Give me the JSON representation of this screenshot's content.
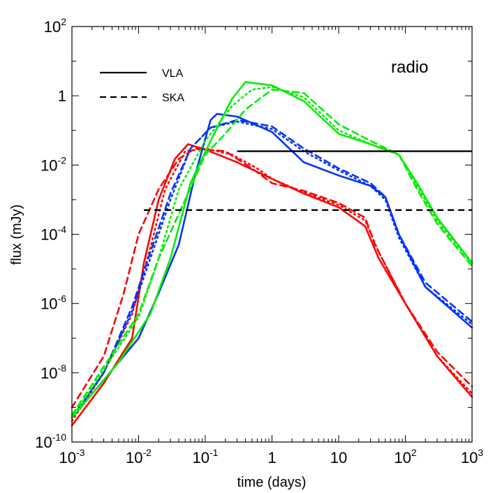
{
  "chart_data": {
    "type": "line",
    "title": "",
    "xlabel": "time (days)",
    "ylabel": "flux (mJy)",
    "xscale": "log",
    "yscale": "log",
    "xlim": [
      0.001,
      1000
    ],
    "ylim": [
      1e-10,
      100
    ],
    "grid": false,
    "legend_placement": "top-left",
    "annotation": "radio",
    "x_ticks": [
      {
        "base": "10",
        "exp": "-3"
      },
      {
        "base": "10",
        "exp": "-2"
      },
      {
        "base": "10",
        "exp": "-1"
      },
      {
        "base": "1",
        "exp": ""
      },
      {
        "base": "10",
        "exp": ""
      },
      {
        "base": "10",
        "exp": "2"
      },
      {
        "base": "10",
        "exp": "3"
      }
    ],
    "y_ticks": [
      {
        "base": "10",
        "exp": "-10"
      },
      {
        "base": "10",
        "exp": "-8"
      },
      {
        "base": "10",
        "exp": "-6"
      },
      {
        "base": "10",
        "exp": "-4"
      },
      {
        "base": "10",
        "exp": "-2"
      },
      {
        "base": "1",
        "exp": ""
      },
      {
        "base": "10",
        "exp": "2"
      }
    ],
    "legend": [
      {
        "label": "VLA",
        "style": "solid"
      },
      {
        "label": "SKA",
        "style": "dashed"
      }
    ],
    "thresholds": [
      {
        "name": "VLA",
        "style": "solid",
        "value": 0.025,
        "x_start": 0.3
      },
      {
        "name": "SKA",
        "style": "dashed",
        "value": 0.0005,
        "x_start": 0.012
      }
    ],
    "series": [
      {
        "color": "#ff0000",
        "style": "solid",
        "points": [
          [
            0.001,
            3e-10
          ],
          [
            0.003,
            5e-09
          ],
          [
            0.008,
            1e-07
          ],
          [
            0.012,
            1.5e-05
          ],
          [
            0.02,
            0.001
          ],
          [
            0.035,
            0.015
          ],
          [
            0.055,
            0.04
          ],
          [
            0.1,
            0.028
          ],
          [
            0.3,
            0.012
          ],
          [
            1,
            0.004
          ],
          [
            3,
            0.0015
          ],
          [
            10,
            0.0006
          ],
          [
            25,
            0.00017
          ],
          [
            40,
            2e-05
          ],
          [
            100,
            1e-06
          ],
          [
            300,
            3e-08
          ],
          [
            1000,
            2e-09
          ]
        ]
      },
      {
        "color": "#ff0000",
        "style": "dashed",
        "points": [
          [
            0.001,
            1e-09
          ],
          [
            0.003,
            3e-08
          ],
          [
            0.006,
            2e-06
          ],
          [
            0.01,
            0.0001
          ],
          [
            0.02,
            0.002
          ],
          [
            0.04,
            0.015
          ],
          [
            0.07,
            0.03
          ],
          [
            0.2,
            0.025
          ],
          [
            0.5,
            0.008
          ],
          [
            1,
            0.003
          ],
          [
            3,
            0.0018
          ],
          [
            10,
            0.0008
          ],
          [
            25,
            0.0003
          ],
          [
            35,
            5e-05
          ],
          [
            100,
            1e-06
          ],
          [
            300,
            4e-08
          ],
          [
            1000,
            4e-09
          ]
        ]
      },
      {
        "color": "#ff0000",
        "style": "dotted",
        "points": [
          [
            0.001,
            4e-10
          ],
          [
            0.003,
            1e-08
          ],
          [
            0.008,
            5e-07
          ],
          [
            0.015,
            4e-05
          ],
          [
            0.025,
            0.002
          ],
          [
            0.05,
            0.025
          ],
          [
            0.1,
            0.03
          ],
          [
            0.25,
            0.02
          ],
          [
            0.6,
            0.008
          ],
          [
            1,
            0.004
          ],
          [
            3,
            0.0016
          ],
          [
            10,
            0.0007
          ],
          [
            25,
            0.00025
          ],
          [
            40,
            3e-05
          ],
          [
            100,
            1e-06
          ],
          [
            300,
            3e-08
          ],
          [
            1000,
            2.5e-09
          ]
        ]
      },
      {
        "color": "#0033ff",
        "style": "solid",
        "points": [
          [
            0.001,
            5e-10
          ],
          [
            0.005,
            2e-08
          ],
          [
            0.01,
            1e-07
          ],
          [
            0.02,
            2e-06
          ],
          [
            0.04,
            5e-05
          ],
          [
            0.07,
            0.005
          ],
          [
            0.12,
            0.2
          ],
          [
            0.15,
            0.3
          ],
          [
            0.3,
            0.25
          ],
          [
            1,
            0.09
          ],
          [
            3,
            0.012
          ],
          [
            10,
            0.005
          ],
          [
            30,
            0.0025
          ],
          [
            50,
            0.0012
          ],
          [
            80,
            0.0001
          ],
          [
            200,
            3e-06
          ],
          [
            1000,
            2e-07
          ]
        ]
      },
      {
        "color": "#0033ff",
        "style": "dashed",
        "points": [
          [
            0.001,
            5e-10
          ],
          [
            0.003,
            1e-08
          ],
          [
            0.008,
            8e-07
          ],
          [
            0.015,
            3e-05
          ],
          [
            0.03,
            0.0015
          ],
          [
            0.06,
            0.03
          ],
          [
            0.12,
            0.12
          ],
          [
            0.3,
            0.2
          ],
          [
            1,
            0.13
          ],
          [
            3,
            0.03
          ],
          [
            10,
            0.008
          ],
          [
            30,
            0.003
          ],
          [
            50,
            0.0012
          ],
          [
            80,
            0.0001
          ],
          [
            200,
            4e-06
          ],
          [
            1000,
            3e-07
          ]
        ]
      },
      {
        "color": "#0033ff",
        "style": "dotted",
        "points": [
          [
            0.001,
            5e-10
          ],
          [
            0.003,
            1e-08
          ],
          [
            0.008,
            6e-07
          ],
          [
            0.015,
            2e-05
          ],
          [
            0.03,
            0.001
          ],
          [
            0.06,
            0.03
          ],
          [
            0.12,
            0.12
          ],
          [
            0.3,
            0.18
          ],
          [
            1,
            0.11
          ],
          [
            3,
            0.025
          ],
          [
            10,
            0.007
          ],
          [
            30,
            0.0025
          ],
          [
            50,
            0.001
          ],
          [
            80,
            8e-05
          ],
          [
            200,
            3e-06
          ],
          [
            1000,
            2.5e-07
          ]
        ]
      },
      {
        "color": "#00ee00",
        "style": "solid",
        "points": [
          [
            0.001,
            5e-10
          ],
          [
            0.005,
            2e-08
          ],
          [
            0.015,
            5e-07
          ],
          [
            0.03,
            2e-05
          ],
          [
            0.06,
            0.003
          ],
          [
            0.12,
            0.05
          ],
          [
            0.25,
            0.8
          ],
          [
            0.4,
            2.5
          ],
          [
            1,
            2
          ],
          [
            3,
            0.7
          ],
          [
            10,
            0.08
          ],
          [
            30,
            0.04
          ],
          [
            80,
            0.02
          ],
          [
            150,
            0.003
          ],
          [
            300,
            0.0003
          ],
          [
            1000,
            1.5e-05
          ]
        ]
      },
      {
        "color": "#00ee00",
        "style": "dashed",
        "points": [
          [
            0.001,
            6e-10
          ],
          [
            0.003,
            1.5e-08
          ],
          [
            0.01,
            5e-07
          ],
          [
            0.02,
            2e-05
          ],
          [
            0.05,
            0.001
          ],
          [
            0.1,
            0.02
          ],
          [
            0.2,
            0.08
          ],
          [
            0.4,
            0.4
          ],
          [
            1,
            1.5
          ],
          [
            3,
            1.2
          ],
          [
            10,
            0.15
          ],
          [
            30,
            0.05
          ],
          [
            80,
            0.02
          ],
          [
            150,
            0.002
          ],
          [
            300,
            0.0002
          ],
          [
            1000,
            1.2e-05
          ]
        ]
      },
      {
        "color": "#00ee00",
        "style": "dotted",
        "points": [
          [
            0.001,
            5e-10
          ],
          [
            0.003,
            1.2e-08
          ],
          [
            0.01,
            4e-07
          ],
          [
            0.02,
            2e-05
          ],
          [
            0.04,
            0.002
          ],
          [
            0.1,
            0.05
          ],
          [
            0.25,
            0.5
          ],
          [
            0.5,
            1.5
          ],
          [
            1,
            1.8
          ],
          [
            3,
            0.9
          ],
          [
            10,
            0.1
          ],
          [
            30,
            0.04
          ],
          [
            80,
            0.02
          ],
          [
            150,
            0.0025
          ],
          [
            300,
            0.00025
          ],
          [
            1000,
            1.4e-05
          ]
        ]
      }
    ]
  }
}
